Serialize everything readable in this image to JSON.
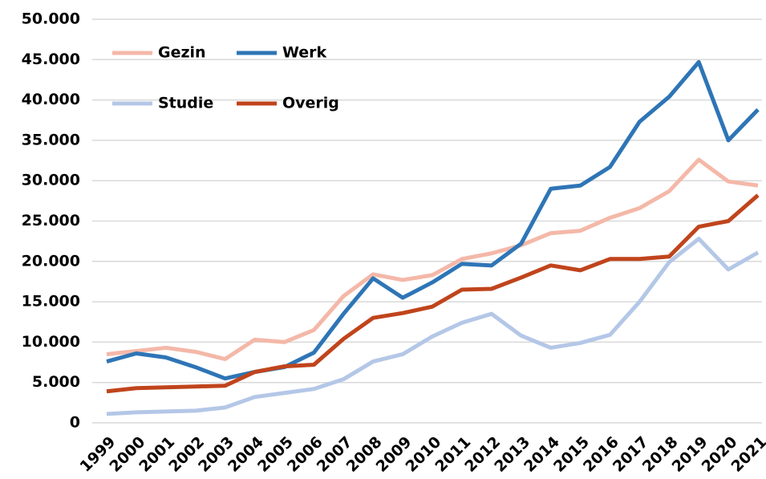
{
  "chart_data": {
    "type": "line",
    "categories": [
      "1999",
      "2000",
      "2001",
      "2002",
      "2003",
      "2004",
      "2005",
      "2006",
      "2007",
      "2008",
      "2009",
      "2010",
      "2011",
      "2012",
      "2013",
      "2014",
      "2015",
      "2016",
      "2017",
      "2018",
      "2019",
      "2020",
      "2021"
    ],
    "series": [
      {
        "name": "Gezin",
        "color": "#f4b8a8",
        "values": [
          8500,
          8900,
          9300,
          8800,
          7900,
          10300,
          10000,
          11500,
          15700,
          18400,
          17700,
          18300,
          20300,
          21000,
          22000,
          23500,
          23800,
          25400,
          26600,
          28700,
          32600,
          29900,
          29400
        ]
      },
      {
        "name": "Werk",
        "color": "#2e75b6",
        "values": [
          7600,
          8600,
          8100,
          6900,
          5500,
          6300,
          6900,
          8700,
          13500,
          17900,
          15500,
          17400,
          19700,
          19500,
          22200,
          29000,
          29400,
          31700,
          37300,
          40400,
          44700,
          35000,
          38800
        ]
      },
      {
        "name": "Studie",
        "color": "#b4c7e7",
        "values": [
          1100,
          1300,
          1400,
          1500,
          1900,
          3200,
          3700,
          4200,
          5400,
          7600,
          8500,
          10700,
          12400,
          13500,
          10800,
          9300,
          9900,
          10900,
          15000,
          19900,
          22800,
          19000,
          21100
        ]
      },
      {
        "name": "Overig",
        "color": "#c0441c",
        "values": [
          3900,
          4300,
          4400,
          4500,
          4600,
          6300,
          7000,
          7200,
          10400,
          13000,
          13600,
          14400,
          16500,
          16600,
          18000,
          19500,
          18900,
          20300,
          20300,
          20600,
          24300,
          25000,
          28200
        ]
      }
    ],
    "ylim": [
      0,
      50000
    ],
    "yticks": [
      0,
      {
        "value": 5000,
        "label": "5.000"
      },
      {
        "value": 10000,
        "label": "10.000"
      },
      {
        "value": 15000,
        "label": "15.000"
      },
      {
        "value": 20000,
        "label": "20.000"
      },
      {
        "value": 25000,
        "label": "25.000"
      },
      {
        "value": 30000,
        "label": "30.000"
      },
      {
        "value": 35000,
        "label": "35.000"
      },
      {
        "value": 40000,
        "label": "40.000"
      },
      {
        "value": 45000,
        "label": "45.000"
      },
      {
        "value": 50000,
        "label": "50.000"
      }
    ],
    "grid": true,
    "legend": "upper left"
  }
}
